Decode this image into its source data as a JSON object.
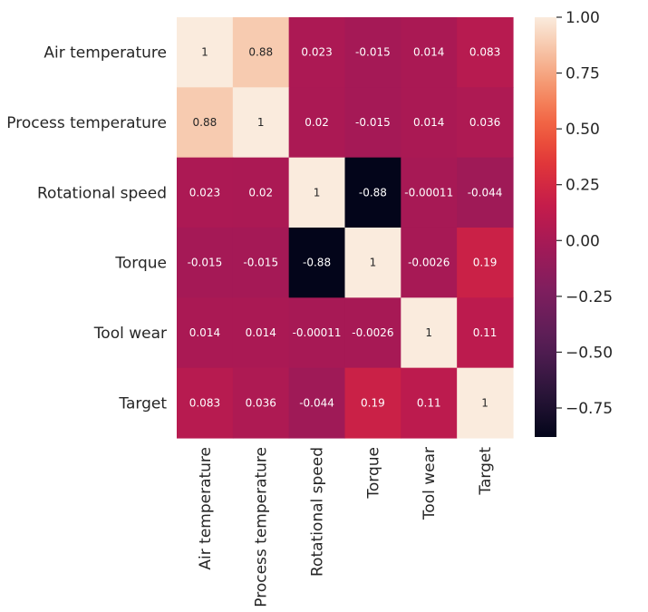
{
  "chart_data": {
    "type": "heatmap",
    "title": "",
    "xlabel": "",
    "ylabel": "",
    "row_labels": [
      "Air temperature",
      "Process temperature",
      "Rotational speed",
      "Torque",
      "Tool wear",
      "Target"
    ],
    "col_labels": [
      "Air temperature",
      "Process temperature",
      "Rotational speed",
      "Torque",
      "Tool wear",
      "Target"
    ],
    "values": [
      [
        1,
        0.88,
        0.023,
        -0.015,
        0.014,
        0.083
      ],
      [
        0.88,
        1,
        0.02,
        -0.015,
        0.014,
        0.036
      ],
      [
        0.023,
        0.02,
        1,
        -0.88,
        -0.00011,
        -0.044
      ],
      [
        -0.015,
        -0.015,
        -0.88,
        1,
        -0.0026,
        0.19
      ],
      [
        0.014,
        0.014,
        -0.00011,
        -0.0026,
        1,
        0.11
      ],
      [
        0.083,
        0.036,
        -0.044,
        0.19,
        0.11,
        1
      ]
    ],
    "value_labels": [
      [
        "1",
        "0.88",
        "0.023",
        "-0.015",
        "0.014",
        "0.083"
      ],
      [
        "0.88",
        "1",
        "0.02",
        "-0.015",
        "0.014",
        "0.036"
      ],
      [
        "0.023",
        "0.02",
        "1",
        "-0.88",
        "-0.00011",
        "-0.044"
      ],
      [
        "-0.015",
        "-0.015",
        "-0.88",
        "1",
        "-0.0026",
        "0.19"
      ],
      [
        "0.014",
        "0.014",
        "-0.00011",
        "-0.0026",
        "1",
        "0.11"
      ],
      [
        "0.083",
        "0.036",
        "-0.044",
        "0.19",
        "0.11",
        "1"
      ]
    ],
    "colormap": "rocket",
    "vmin": -0.88,
    "vmax": 1,
    "colorbar": {
      "ticks": [
        1.0,
        0.75,
        0.5,
        0.25,
        0.0,
        -0.25,
        -0.5,
        -0.75
      ],
      "tick_labels": [
        "1.00",
        "0.75",
        "0.50",
        "0.25",
        "0.00",
        "−0.25",
        "−0.50",
        "−0.75"
      ],
      "placement": "right"
    },
    "annotations_shown": true,
    "grid": false,
    "legend": "none"
  }
}
